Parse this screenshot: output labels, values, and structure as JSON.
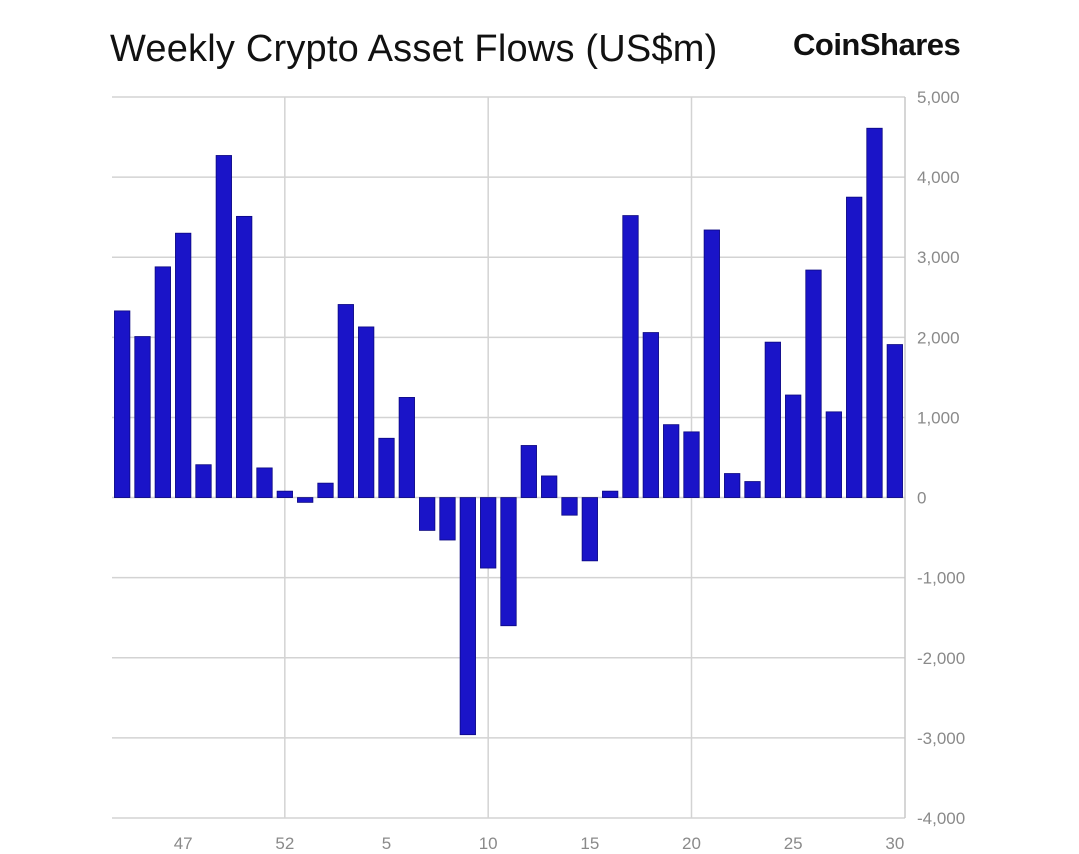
{
  "header": {
    "title": "Weekly Crypto Asset Flows (US$m)",
    "brand": "CoinShares"
  },
  "chart_data": {
    "type": "bar",
    "title": "Weekly Crypto Asset Flows (US$m)",
    "xlabel": "",
    "ylabel": "",
    "ylim": [
      -4000,
      5000
    ],
    "y_ticks": [
      5000,
      4000,
      3000,
      2000,
      1000,
      0,
      -1000,
      -2000,
      -3000,
      -4000
    ],
    "y_tick_labels": [
      "5,000",
      "4,000",
      "3,000",
      "2,000",
      "1,000",
      "0",
      "-1,000",
      "-2,000",
      "-3,000",
      "-4,000"
    ],
    "y_axis_side": "right",
    "x_tick_labels": [
      {
        "label": "47",
        "week_index": 3
      },
      {
        "label": "52",
        "week_index": 8
      },
      {
        "label": "5",
        "week_index": 13
      },
      {
        "label": "10",
        "week_index": 18
      },
      {
        "label": "15",
        "week_index": 23
      },
      {
        "label": "20",
        "week_index": 28
      },
      {
        "label": "25",
        "week_index": 33
      },
      {
        "label": "30",
        "week_index": 38
      }
    ],
    "x_gridlines_at_week_index": [
      8.5,
      18.5,
      28.5
    ],
    "grid": true,
    "bar_color": "#1a14c8",
    "values": [
      2330,
      2010,
      2880,
      3300,
      410,
      4270,
      3510,
      370,
      80,
      -60,
      180,
      2410,
      2130,
      740,
      1250,
      -410,
      -530,
      -2960,
      -880,
      -1600,
      650,
      270,
      -220,
      -790,
      80,
      3520,
      2060,
      910,
      820,
      3340,
      300,
      200,
      1940,
      1280,
      2840,
      1070,
      3750,
      4610,
      1910
    ]
  }
}
